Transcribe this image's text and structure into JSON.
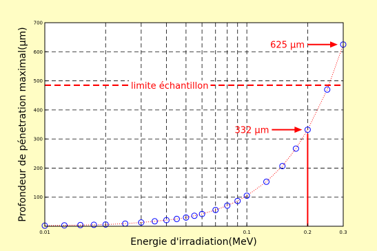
{
  "chart_data": {
    "type": "scatter",
    "title": "",
    "xlabel": "Energie d'irradiation(MeV)",
    "ylabel": "Profondeur de pénetration maximal(µm)",
    "x_scale": "log",
    "xlim": [
      0.01,
      0.3
    ],
    "ylim": [
      0,
      700
    ],
    "x_ticks": [
      0.01,
      0.1,
      0.2,
      0.3
    ],
    "x_tick_labels": [
      "0.01",
      "0.1",
      "0.2",
      "0.3"
    ],
    "y_ticks": [
      100,
      200,
      300,
      400,
      500,
      600,
      700
    ],
    "y_tick_labels": [
      "100",
      "200",
      "300",
      "400",
      "500",
      "600",
      "700"
    ],
    "grid": true,
    "series": [
      {
        "marker": "circle",
        "color": "#0000ff",
        "line_color": "#ff0000",
        "line_style": "dotted",
        "x": [
          0.01,
          0.0125,
          0.015,
          0.0175,
          0.02,
          0.025,
          0.03,
          0.035,
          0.04,
          0.045,
          0.05,
          0.055,
          0.06,
          0.07,
          0.08,
          0.09,
          0.1,
          0.125,
          0.15,
          0.175,
          0.2,
          0.25,
          0.3
        ],
        "y": [
          2,
          3,
          4,
          5,
          6,
          9,
          13,
          17,
          21,
          25,
          30,
          36,
          42,
          56,
          71,
          87,
          105,
          153,
          207,
          267,
          332,
          470,
          625
        ]
      }
    ],
    "annotations": {
      "limit_line": {
        "y": 485,
        "label": "limite échantillon",
        "color": "#ff0000"
      },
      "label_625": {
        "text": "625 µm",
        "color": "#ff0000",
        "x": 0.3,
        "y": 625
      },
      "label_332": {
        "text": "332 µm",
        "color": "#ff0000",
        "x": 0.2,
        "y": 332
      },
      "marker_line_x": 0.2
    }
  }
}
